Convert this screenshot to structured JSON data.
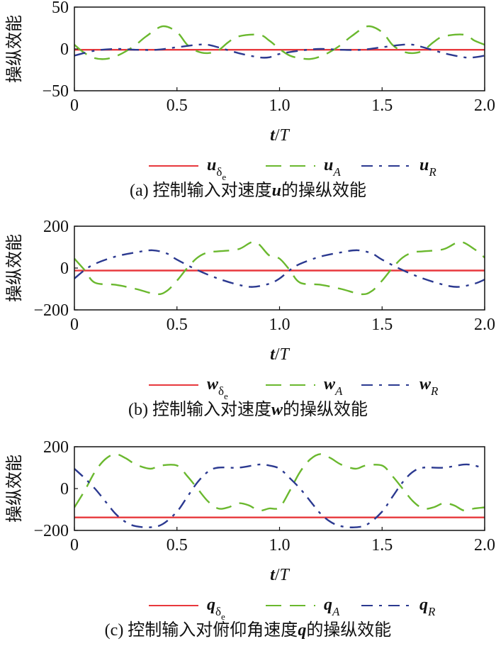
{
  "chart_data": [
    {
      "type": "line",
      "ylabel": "操纵效能",
      "xlabel_var": "t",
      "xlabel_sep": "/",
      "xlabel_var2": "T",
      "xlim": [
        0,
        2.0
      ],
      "ylim": [
        -50,
        50
      ],
      "xticks": [
        "0",
        "0.5",
        "1.0",
        "1.5",
        "2.0"
      ],
      "yticks": [
        "50",
        "0",
        "−50"
      ],
      "ytick_values": [
        50,
        0,
        -50
      ],
      "caption": {
        "prefix": "(a) 控制输入对速度",
        "var": "u",
        "suffix": "的操纵效能"
      },
      "series": [
        {
          "name": "u",
          "sub": "δ",
          "sub2": "e",
          "color": "#e8383d",
          "style": "solid",
          "x": [
            0,
            0.5,
            1.0,
            1.5,
            2.0
          ],
          "y": [
            -1,
            -1,
            -1,
            -1,
            -1
          ]
        },
        {
          "name": "u",
          "sub": "A",
          "color": "#6ab82e",
          "style": "dashed",
          "x": [
            0,
            0.05,
            0.1,
            0.15,
            0.2,
            0.25,
            0.3,
            0.35,
            0.43,
            0.5,
            0.55,
            0.6,
            0.65,
            0.7,
            0.75,
            0.8,
            0.9,
            0.95,
            1.0,
            1.05,
            1.1,
            1.15,
            1.2,
            1.25,
            1.3,
            1.35,
            1.43,
            1.5,
            1.55,
            1.6,
            1.65,
            1.7,
            1.75,
            1.8,
            1.9,
            1.95,
            2.0
          ],
          "y": [
            5,
            -5,
            -11,
            -12,
            -9,
            -3,
            5,
            15,
            27,
            20,
            5,
            -3,
            -5,
            -2,
            8,
            15,
            17,
            10,
            0,
            -8,
            -11,
            -12,
            -9,
            -3,
            5,
            15,
            27,
            20,
            5,
            -3,
            -5,
            -2,
            8,
            15,
            17,
            10,
            5
          ]
        },
        {
          "name": "u",
          "sub": "R",
          "color": "#2b3990",
          "style": "dashdot",
          "x": [
            0,
            0.1,
            0.2,
            0.3,
            0.4,
            0.5,
            0.6,
            0.65,
            0.7,
            0.8,
            0.9,
            0.95,
            1.0,
            1.1,
            1.2,
            1.3,
            1.4,
            1.5,
            1.6,
            1.65,
            1.7,
            1.8,
            1.9,
            1.95,
            2.0
          ],
          "y": [
            -8,
            -2,
            0,
            -1,
            -1,
            2,
            5,
            5,
            2,
            -5,
            -10,
            -10,
            -6,
            -2,
            0,
            -1,
            -1,
            2,
            5,
            5,
            2,
            -5,
            -10,
            -10,
            -8
          ]
        }
      ]
    },
    {
      "type": "line",
      "ylabel": "操纵效能",
      "xlabel_var": "t",
      "xlabel_sep": "/",
      "xlabel_var2": "T",
      "xlim": [
        0,
        2.0
      ],
      "ylim": [
        -200,
        200
      ],
      "xticks": [
        "0",
        "0.5",
        "1.0",
        "1.5",
        "2.0"
      ],
      "yticks": [
        "200",
        "0",
        "−200"
      ],
      "ytick_values": [
        200,
        0,
        -200
      ],
      "caption": {
        "prefix": "(b) 控制输入对速度",
        "var": "w",
        "suffix": "的操纵效能"
      },
      "series": [
        {
          "name": "w",
          "sub": "δ",
          "sub2": "e",
          "color": "#e8383d",
          "style": "solid",
          "x": [
            0,
            0.5,
            1.0,
            1.5,
            2.0
          ],
          "y": [
            -12,
            -12,
            -12,
            -12,
            -12
          ]
        },
        {
          "name": "w",
          "sub": "A",
          "color": "#6ab82e",
          "style": "dashed",
          "x": [
            0,
            0.05,
            0.1,
            0.2,
            0.3,
            0.4,
            0.45,
            0.5,
            0.55,
            0.6,
            0.65,
            0.7,
            0.8,
            0.88,
            0.95,
            1.0,
            1.05,
            1.1,
            1.2,
            1.3,
            1.4,
            1.45,
            1.5,
            1.55,
            1.6,
            1.65,
            1.7,
            1.8,
            1.88,
            1.95,
            2.0
          ],
          "y": [
            45,
            -10,
            -70,
            -80,
            -100,
            -125,
            -110,
            -60,
            0,
            50,
            75,
            80,
            90,
            125,
            60,
            45,
            -10,
            -70,
            -80,
            -100,
            -125,
            -110,
            -60,
            0,
            50,
            75,
            80,
            90,
            125,
            90,
            50
          ]
        },
        {
          "name": "w",
          "sub": "R",
          "color": "#2b3990",
          "style": "dashdot",
          "x": [
            0,
            0.05,
            0.1,
            0.2,
            0.3,
            0.38,
            0.45,
            0.5,
            0.6,
            0.7,
            0.8,
            0.87,
            0.95,
            1.0,
            1.05,
            1.1,
            1.2,
            1.3,
            1.38,
            1.45,
            1.5,
            1.6,
            1.7,
            1.8,
            1.87,
            1.95,
            2.0
          ],
          "y": [
            -50,
            -10,
            20,
            55,
            75,
            85,
            70,
            40,
            -10,
            -50,
            -80,
            -90,
            -75,
            -50,
            -10,
            20,
            55,
            75,
            85,
            70,
            40,
            -10,
            -50,
            -80,
            -90,
            -75,
            -55
          ]
        }
      ]
    },
    {
      "type": "line",
      "ylabel": "操纵效能",
      "xlabel_var": "t",
      "xlabel_sep": "/",
      "xlabel_var2": "T",
      "xlim": [
        0,
        2.0
      ],
      "ylim": [
        -200,
        200
      ],
      "xticks": [
        "0",
        "0.5",
        "1.0",
        "1.5",
        "2.0"
      ],
      "yticks": [
        "200",
        "0",
        "−200"
      ],
      "ytick_values": [
        200,
        0,
        -200
      ],
      "caption": {
        "prefix": "(c) 控制输入对俯仰角速度",
        "var": "q",
        "suffix": "的操纵效能"
      },
      "series": [
        {
          "name": "q",
          "sub": "δ",
          "sub2": "e",
          "color": "#e8383d",
          "style": "solid",
          "x": [
            0,
            0.5,
            1.0,
            1.5,
            2.0
          ],
          "y": [
            -138,
            -138,
            -138,
            -138,
            -138
          ]
        },
        {
          "name": "q",
          "sub": "A",
          "color": "#6ab82e",
          "style": "dashed",
          "x": [
            0,
            0.05,
            0.1,
            0.15,
            0.2,
            0.25,
            0.3,
            0.37,
            0.42,
            0.5,
            0.55,
            0.6,
            0.65,
            0.7,
            0.75,
            0.8,
            0.85,
            0.9,
            0.95,
            1.0,
            1.05,
            1.1,
            1.15,
            1.2,
            1.25,
            1.3,
            1.37,
            1.42,
            1.5,
            1.55,
            1.6,
            1.65,
            1.7,
            1.75,
            1.8,
            1.85,
            1.9,
            1.95,
            2.0
          ],
          "y": [
            -90,
            -10,
            80,
            140,
            165,
            145,
            115,
            95,
            110,
            110,
            60,
            0,
            -60,
            -95,
            -90,
            -70,
            -80,
            -105,
            -95,
            -90,
            -10,
            80,
            140,
            165,
            145,
            115,
            95,
            110,
            110,
            60,
            0,
            -60,
            -95,
            -90,
            -70,
            -80,
            -105,
            -95,
            -90
          ]
        },
        {
          "name": "q",
          "sub": "R",
          "color": "#2b3990",
          "style": "dashdot",
          "x": [
            0,
            0.05,
            0.1,
            0.15,
            0.2,
            0.25,
            0.3,
            0.37,
            0.43,
            0.5,
            0.55,
            0.6,
            0.65,
            0.7,
            0.8,
            0.9,
            0.95,
            1.0,
            1.05,
            1.1,
            1.15,
            1.2,
            1.25,
            1.3,
            1.37,
            1.43,
            1.5,
            1.55,
            1.6,
            1.65,
            1.7,
            1.8,
            1.9,
            1.95,
            2.0
          ],
          "y": [
            95,
            50,
            0,
            -60,
            -120,
            -160,
            -180,
            -185,
            -170,
            -110,
            -40,
            30,
            80,
            100,
            100,
            115,
            110,
            95,
            50,
            0,
            -60,
            -120,
            -160,
            -180,
            -185,
            -170,
            -110,
            -40,
            30,
            80,
            100,
            100,
            115,
            110,
            95
          ]
        }
      ]
    }
  ]
}
